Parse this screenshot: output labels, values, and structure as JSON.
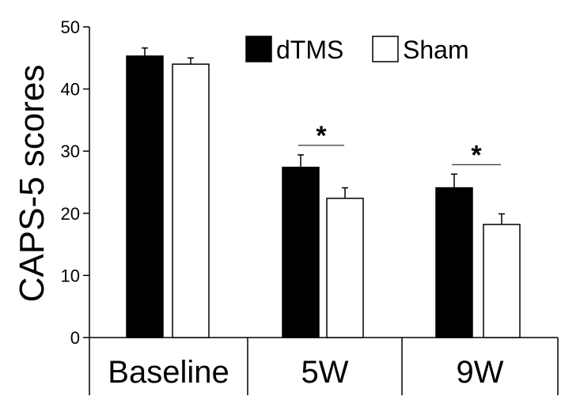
{
  "chart_data": {
    "type": "bar",
    "title": "",
    "xlabel": "",
    "ylabel": "CAPS-5 scores",
    "ylim": [
      0,
      50
    ],
    "yticks": [
      "0",
      "10",
      "20",
      "30",
      "40",
      "50"
    ],
    "categories": [
      "Baseline",
      "5W",
      "9W"
    ],
    "series": [
      {
        "name": "dTMS",
        "color": "#000000",
        "values": [
          45.3,
          27.4,
          24.1
        ],
        "errors": [
          1.3,
          2.0,
          2.2
        ]
      },
      {
        "name": "Sham",
        "color": "#ffffff",
        "values": [
          44.0,
          22.4,
          18.2
        ],
        "errors": [
          1.0,
          1.7,
          1.7
        ]
      }
    ],
    "significance": [
      {
        "category": "5W",
        "label": "*"
      },
      {
        "category": "9W",
        "label": "*"
      }
    ],
    "legend_position": "top-right"
  }
}
